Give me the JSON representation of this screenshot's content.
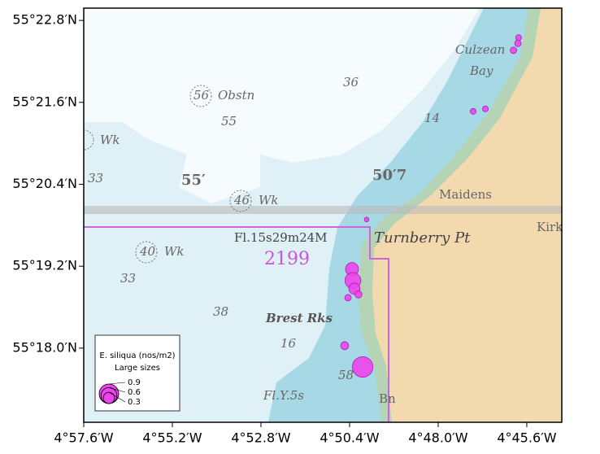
{
  "map": {
    "xlim": [
      -4.96,
      -4.7442
    ],
    "ylim": [
      55.2819,
      55.383
    ],
    "xticks": [
      {
        "value": -4.96,
        "label": "4°57.6′W"
      },
      {
        "value": -4.92,
        "label": "4°55.2′W"
      },
      {
        "value": -4.88,
        "label": "4°52.8′W"
      },
      {
        "value": -4.84,
        "label": "4°50.4′W"
      },
      {
        "value": -4.8,
        "label": "4°48.0′W"
      },
      {
        "value": -4.76,
        "label": "4°45.6′W"
      }
    ],
    "yticks": [
      {
        "value": 55.38,
        "label": "55°22.8′N"
      },
      {
        "value": 55.36,
        "label": "55°21.6′N"
      },
      {
        "value": 55.34,
        "label": "55°20.4′N"
      },
      {
        "value": 55.32,
        "label": "55°19.2′N"
      },
      {
        "value": 55.3,
        "label": "55°18.0′N"
      }
    ],
    "color": "#ee44ee",
    "points": {
      "lon": [
        -4.764,
        -4.766,
        -4.7637,
        -4.7842,
        -4.7787,
        -4.8323,
        -4.8389,
        -4.8385,
        -4.8378,
        -4.836,
        -4.8407,
        -4.8422,
        -4.8341
      ],
      "lat": [
        55.3744,
        55.3727,
        55.3758,
        55.3578,
        55.3584,
        55.3314,
        55.3193,
        55.3165,
        55.3145,
        55.3131,
        55.3123,
        55.3006,
        55.2954
      ],
      "size": [
        0.1,
        0.1,
        0.08,
        0.08,
        0.08,
        0.05,
        0.4,
        0.6,
        0.3,
        0.12,
        0.1,
        0.15,
        1.0
      ]
    },
    "legend": {
      "title": "E. siliqua (nos/m2)",
      "subtitle": "Large sizes",
      "sizes": [
        0.9,
        0.6,
        0.3
      ]
    },
    "labels": {
      "culzean": "Culzean",
      "bay": "Bay",
      "obstn_depth": "56",
      "obstn": "Obstn",
      "d36": "36",
      "d55": "55",
      "wk1": "Wk",
      "d33a": "33",
      "lat55": "55′",
      "wk2": "Wk",
      "wk2_depth": "46",
      "lat50": "50′7",
      "maidens": "Maidens",
      "light": "Fl.15s29m24M",
      "turnberry": "Turnberry Pt",
      "chart": "2199",
      "wk3": "Wk",
      "wk3_depth": "40",
      "d33b": "33",
      "d38": "38",
      "brest": "Brest Rks",
      "d16": "16",
      "d14": "14",
      "d58": "58",
      "fly": "Fl.Y.5s",
      "bn": "Bn",
      "kirk": "Kirk"
    }
  }
}
